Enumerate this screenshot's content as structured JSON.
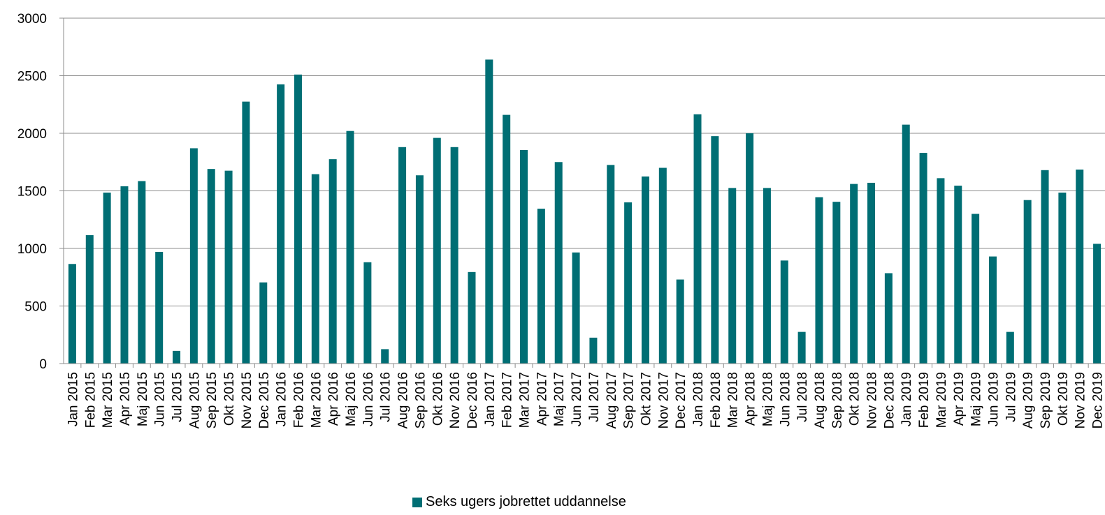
{
  "chart_data": {
    "type": "bar",
    "categories": [
      "Jan 2015",
      "Feb 2015",
      "Mar 2015",
      "Apr 2015",
      "Maj 2015",
      "Jun 2015",
      "Jul 2015",
      "Aug 2015",
      "Sep 2015",
      "Okt 2015",
      "Nov 2015",
      "Dec 2015",
      "Jan 2016",
      "Feb 2016",
      "Mar 2016",
      "Apr 2016",
      "Maj 2016",
      "Jun 2016",
      "Jul 2016",
      "Aug 2016",
      "Sep 2016",
      "Okt 2016",
      "Nov 2016",
      "Dec 2016",
      "Jan 2017",
      "Feb 2017",
      "Mar 2017",
      "Apr 2017",
      "Maj 2017",
      "Jun 2017",
      "Jul 2017",
      "Aug 2017",
      "Sep 2017",
      "Okt 2017",
      "Nov 2017",
      "Dec 2017",
      "Jan 2018",
      "Feb 2018",
      "Mar 2018",
      "Apr 2018",
      "Maj 2018",
      "Jun 2018",
      "Jul 2018",
      "Aug 2018",
      "Sep 2018",
      "Okt 2018",
      "Nov 2018",
      "Dec 2018",
      "Jan 2019",
      "Feb 2019",
      "Mar 2019",
      "Apr 2019",
      "Maj 2019",
      "Jun 2019",
      "Jul 2019",
      "Aug 2019",
      "Sep 2019",
      "Okt 2019",
      "Nov 2019",
      "Dec 2019"
    ],
    "series": [
      {
        "name": "Seks ugers jobrettet uddannelse",
        "color": "#006E74",
        "values": [
          865,
          1115,
          1485,
          1540,
          1585,
          970,
          110,
          1870,
          1690,
          1675,
          2275,
          705,
          2425,
          2510,
          1645,
          1775,
          2020,
          880,
          125,
          1880,
          1635,
          1960,
          1880,
          795,
          2640,
          2160,
          1855,
          1345,
          1750,
          965,
          225,
          1725,
          1400,
          1625,
          1700,
          730,
          2165,
          1975,
          1525,
          2000,
          1525,
          895,
          275,
          1445,
          1405,
          1560,
          1570,
          785,
          2075,
          1830,
          1610,
          1545,
          1300,
          930,
          275,
          1420,
          1680,
          1485,
          1685,
          1040
        ]
      }
    ],
    "yticks": [
      "0",
      "500",
      "1000",
      "1500",
      "2000",
      "2500",
      "3000"
    ],
    "ylim": [
      0,
      3000
    ],
    "title": "",
    "xlabel": "",
    "ylabel": "",
    "grid": true,
    "legend": "bottom-center"
  },
  "legend": {
    "label": "Seks ugers jobrettet uddannelse"
  }
}
